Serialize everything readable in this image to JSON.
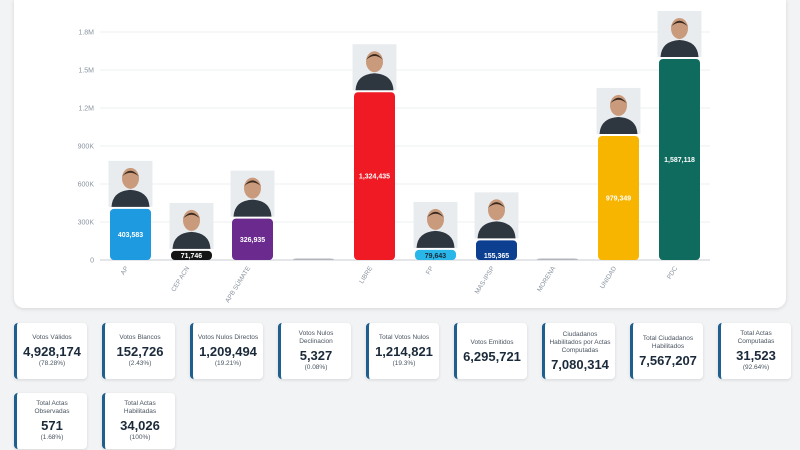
{
  "chart_data": {
    "type": "bar",
    "categories": [
      "AP",
      "CEP ACN",
      "APB SÚMATE",
      "",
      "LIBRE",
      "FP",
      "MAS-IPSP",
      "MORENA",
      "UNIDAD",
      "PDC"
    ],
    "values": [
      403583,
      71746,
      326935,
      2000,
      1324435,
      79643,
      155365,
      2000,
      979349,
      1587118
    ],
    "value_labels": [
      "403,583",
      "71,746",
      "326,935",
      "",
      "1,324,435",
      "79,643",
      "155,365",
      "",
      "979,349",
      "1,587,118"
    ],
    "colors": [
      "#1e9be0",
      "#151515",
      "#6a2a8e",
      "#b0b6bc",
      "#ef1a24",
      "#29b6e8",
      "#0d3f91",
      "#b0b6bc",
      "#f7b500",
      "#0e6b5e"
    ],
    "label_colors": [
      "#ffffff",
      "#ffffff",
      "#ffffff",
      "#ffffff",
      "#ffffff",
      "#1b2a3a",
      "#ffffff",
      "#ffffff",
      "#ffffff",
      "#ffffff"
    ],
    "has_photo": [
      true,
      true,
      true,
      false,
      true,
      true,
      true,
      false,
      true,
      true
    ],
    "y_ticks": [
      0,
      300000,
      600000,
      900000,
      1200000,
      1500000,
      1800000
    ],
    "y_tick_labels": [
      "0",
      "300K",
      "600K",
      "900K",
      "1.2M",
      "1.5M",
      "1.8M"
    ],
    "ylim": [
      0,
      1800000
    ],
    "title": "",
    "xlabel": "",
    "ylabel": "",
    "grid": true
  },
  "stats": [
    {
      "title": "Votos Válidos",
      "value": "4,928,174",
      "pct": "(78.28%)"
    },
    {
      "title": "Votos Blancos",
      "value": "152,726",
      "pct": "(2.43%)"
    },
    {
      "title": "Votos Nulos Directos",
      "value": "1,209,494",
      "pct": "(19.21%)"
    },
    {
      "title": "Votos Nulos Declinacion",
      "value": "5,327",
      "pct": "(0.08%)"
    },
    {
      "title": "Total Votos Nulos",
      "value": "1,214,821",
      "pct": "(19.3%)"
    },
    {
      "title": "Votos Emitidos",
      "value": "6,295,721",
      "pct": ""
    },
    {
      "title": "Ciudadanos Habilitados por Actas Computadas",
      "value": "7,080,314",
      "pct": ""
    },
    {
      "title": "Total Ciudadanos Habilitados",
      "value": "7,567,207",
      "pct": ""
    },
    {
      "title": "Total Actas Computadas",
      "value": "31,523",
      "pct": "(92.64%)"
    },
    {
      "title": "Total Actas Observadas",
      "value": "571",
      "pct": "(1.68%)"
    },
    {
      "title": "Total Actas Habilitadas",
      "value": "34,026",
      "pct": "(100%)"
    }
  ],
  "candidate_icon": "candidate-photo-icon"
}
